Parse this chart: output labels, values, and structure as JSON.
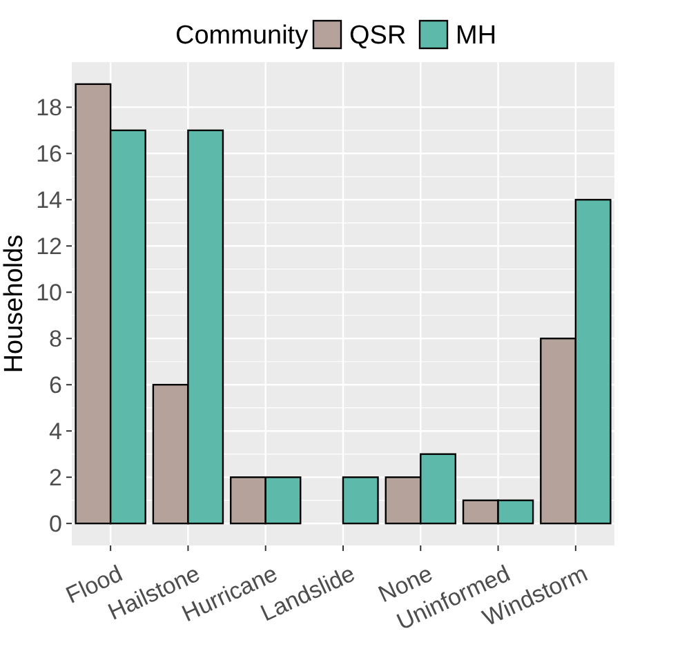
{
  "chart_data": {
    "type": "bar",
    "ylabel": "Households",
    "legend_title": "Community",
    "legend": "top",
    "categories": [
      "Flood",
      "Hailstone",
      "Hurricane",
      "Landslide",
      "None",
      "Uninformed",
      "Windstorm"
    ],
    "series": [
      {
        "name": "QSR",
        "color": "#b5a39b",
        "values": [
          19,
          6,
          2,
          0,
          2,
          1,
          8
        ]
      },
      {
        "name": "MH",
        "color": "#5dbaab",
        "values": [
          17,
          17,
          2,
          2,
          3,
          1,
          14
        ]
      }
    ],
    "ylim": [
      -0.95,
      19.95
    ],
    "yticks": [
      0,
      2,
      4,
      6,
      8,
      10,
      12,
      14,
      16,
      18
    ],
    "grid": true
  }
}
